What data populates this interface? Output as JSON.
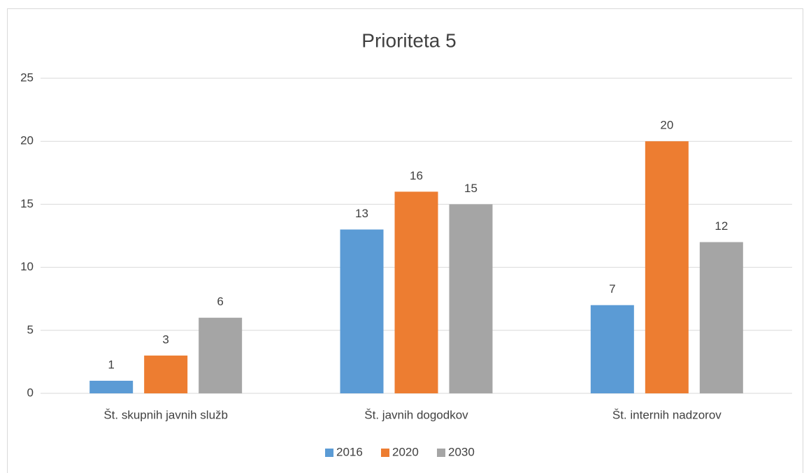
{
  "chart_data": {
    "type": "bar",
    "title": "Prioriteta 5",
    "categories": [
      "Št. skupnih javnih služb",
      "Št. javnih dogodkov",
      "Št. internih nadzorov"
    ],
    "series": [
      {
        "name": "2016",
        "color": "#5b9bd5",
        "values": [
          1,
          13,
          7
        ]
      },
      {
        "name": "2020",
        "color": "#ed7d31",
        "values": [
          3,
          16,
          20
        ]
      },
      {
        "name": "2030",
        "color": "#a5a5a5",
        "values": [
          6,
          15,
          12
        ]
      }
    ],
    "ylim": [
      0,
      25
    ],
    "yticks": [
      0,
      5,
      10,
      15,
      20,
      25
    ],
    "grid": true,
    "legend": "bottom"
  }
}
